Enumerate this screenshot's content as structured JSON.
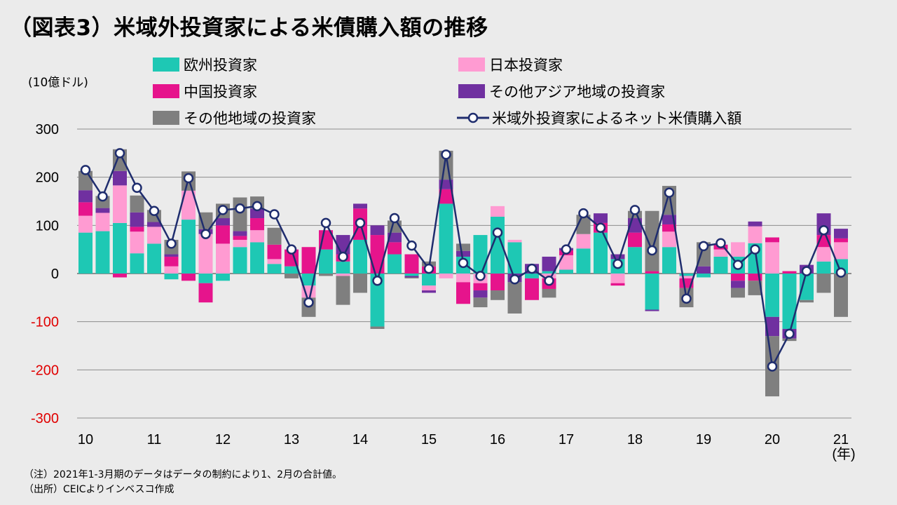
{
  "title": "（図表3）米域外投資家による米債購入額の推移",
  "unit_label": "(10億ドル)",
  "year_suffix": "(年)",
  "notes": [
    "（注）2021年1-3月期のデータはデータの制約により1、2月の合計値。",
    "（出所）CEICよりインベスコ作成"
  ],
  "legend": [
    {
      "key": "europe",
      "label": "欧州投資家",
      "color": "#1ec8b4"
    },
    {
      "key": "japan",
      "label": "日本投資家",
      "color": "#ff9bd2"
    },
    {
      "key": "china",
      "label": "中国投資家",
      "color": "#e6148c"
    },
    {
      "key": "other_asia",
      "label": "その他アジア地域の投資家",
      "color": "#7030a0"
    },
    {
      "key": "other",
      "label": "その他地域の投資家",
      "color": "#7f7f7f"
    },
    {
      "key": "net",
      "label": "米域外投資家によるネット米債購入額",
      "color": "#1f2d6e"
    }
  ],
  "chart_data": {
    "type": "bar",
    "stacked": true,
    "ylim": [
      -300,
      300
    ],
    "yticks": [
      300,
      200,
      100,
      0,
      -100,
      -200,
      -300
    ],
    "negative_tick_color": "#e00000",
    "xtick_labels": [
      "10",
      "11",
      "12",
      "13",
      "14",
      "15",
      "16",
      "17",
      "18",
      "19",
      "20",
      "21"
    ],
    "categories": [
      "10Q1",
      "10Q2",
      "10Q3",
      "10Q4",
      "11Q1",
      "11Q2",
      "11Q3",
      "11Q4",
      "12Q1",
      "12Q2",
      "12Q3",
      "12Q4",
      "13Q1",
      "13Q2",
      "13Q3",
      "13Q4",
      "14Q1",
      "14Q2",
      "14Q3",
      "14Q4",
      "15Q1",
      "15Q2",
      "15Q3",
      "15Q4",
      "16Q1",
      "16Q2",
      "16Q3",
      "16Q4",
      "17Q1",
      "17Q2",
      "17Q3",
      "17Q4",
      "18Q1",
      "18Q2",
      "18Q3",
      "18Q4",
      "19Q1",
      "19Q2",
      "19Q3",
      "19Q4",
      "20Q1",
      "20Q2",
      "20Q3",
      "20Q4",
      "21Q1"
    ],
    "series": [
      {
        "key": "europe",
        "name": "欧州投資家",
        "values": [
          85,
          88,
          105,
          42,
          62,
          -12,
          112,
          -20,
          -15,
          55,
          65,
          20,
          15,
          -25,
          50,
          25,
          70,
          -110,
          40,
          -5,
          -25,
          145,
          35,
          80,
          118,
          65,
          -10,
          5,
          8,
          52,
          85,
          30,
          55,
          -75,
          55,
          -5,
          -8,
          35,
          35,
          63,
          -90,
          -115,
          -55,
          25,
          30
        ]
      },
      {
        "key": "japan",
        "name": "日本投資家",
        "values": [
          35,
          38,
          78,
          45,
          35,
          15,
          60,
          82,
          62,
          15,
          25,
          10,
          0,
          -25,
          0,
          -5,
          0,
          0,
          0,
          0,
          -10,
          -10,
          -18,
          -20,
          22,
          5,
          0,
          -10,
          30,
          30,
          0,
          -20,
          0,
          0,
          32,
          -5,
          0,
          15,
          30,
          35,
          65,
          0,
          0,
          30,
          35
        ]
      },
      {
        "key": "china",
        "name": "中国投資家",
        "values": [
          28,
          0,
          -8,
          10,
          0,
          20,
          -15,
          -40,
          38,
          8,
          25,
          30,
          35,
          55,
          40,
          15,
          65,
          80,
          25,
          40,
          15,
          30,
          -45,
          -15,
          -35,
          0,
          -45,
          -22,
          10,
          0,
          20,
          -5,
          30,
          5,
          15,
          -20,
          0,
          10,
          -15,
          -15,
          10,
          5,
          0,
          25,
          8
        ]
      },
      {
        "key": "other_asia",
        "name": "その他アジア地域の投資家",
        "values": [
          25,
          10,
          30,
          30,
          10,
          5,
          0,
          10,
          15,
          10,
          20,
          0,
          0,
          0,
          0,
          40,
          10,
          20,
          20,
          -3,
          -5,
          20,
          12,
          -15,
          0,
          -18,
          20,
          30,
          5,
          0,
          20,
          10,
          30,
          -3,
          20,
          0,
          15,
          0,
          -15,
          10,
          -40,
          -20,
          18,
          45,
          20
        ]
      },
      {
        "key": "other",
        "name": "その他地域の投資家",
        "values": [
          40,
          25,
          45,
          35,
          25,
          30,
          40,
          35,
          30,
          70,
          25,
          35,
          -10,
          -40,
          -5,
          -60,
          -40,
          -5,
          25,
          -2,
          10,
          60,
          15,
          -20,
          -20,
          -65,
          0,
          -18,
          0,
          40,
          0,
          0,
          15,
          125,
          60,
          -40,
          50,
          0,
          -20,
          -30,
          -125,
          -5,
          -5,
          -40,
          -90
        ]
      },
      {
        "key": "net",
        "name": "米域外投資家によるネット米債購入額",
        "type": "line",
        "values": [
          215,
          160,
          250,
          178,
          130,
          62,
          198,
          82,
          132,
          135,
          140,
          123,
          50,
          -60,
          105,
          35,
          105,
          -15,
          115,
          58,
          10,
          247,
          22,
          -5,
          85,
          -12,
          10,
          -15,
          50,
          125,
          95,
          20,
          132,
          48,
          168,
          -52,
          57,
          63,
          18,
          50,
          -193,
          -125,
          5,
          90,
          2
        ]
      }
    ]
  }
}
